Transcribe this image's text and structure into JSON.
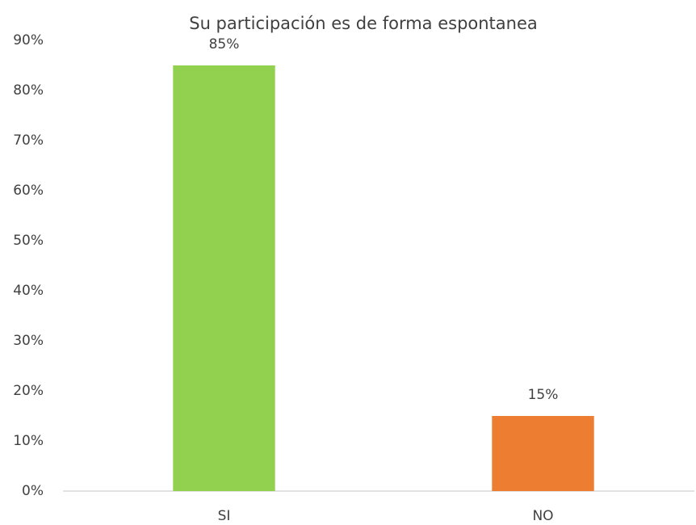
{
  "chart_data": {
    "type": "bar",
    "title": "Su participación es de forma espontanea",
    "categories": [
      "SI",
      "NO"
    ],
    "values": [
      85,
      15
    ],
    "value_labels": [
      "85%",
      "15%"
    ],
    "colors": [
      "#92d050",
      "#ed7d31"
    ],
    "ylim": [
      0,
      90
    ],
    "yticks": [
      {
        "value": 0,
        "label": "0%"
      },
      {
        "value": 10,
        "label": "10%"
      },
      {
        "value": 20,
        "label": "20%"
      },
      {
        "value": 30,
        "label": "30%"
      },
      {
        "value": 40,
        "label": "40%"
      },
      {
        "value": 50,
        "label": "50%"
      },
      {
        "value": 60,
        "label": "60%"
      },
      {
        "value": 70,
        "label": "70%"
      },
      {
        "value": 80,
        "label": "80%"
      },
      {
        "value": 90,
        "label": "90%"
      }
    ],
    "grid": false
  }
}
